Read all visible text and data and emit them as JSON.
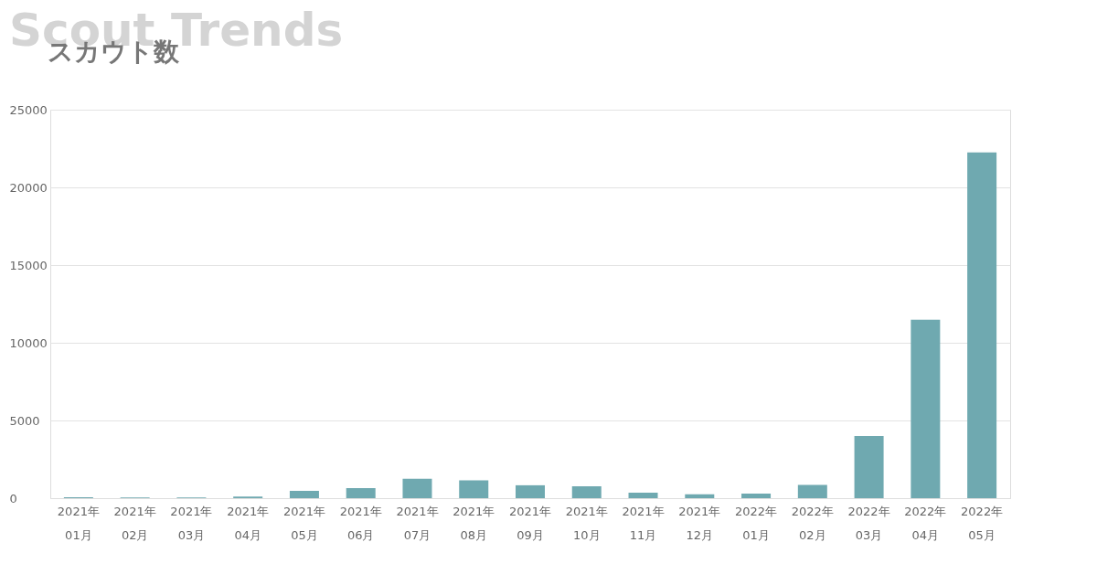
{
  "chart_data": {
    "type": "bar",
    "title": "スカウト数",
    "annotations": [
      "Scout Trends"
    ],
    "categories": [
      "2021年 01月",
      "2021年 02月",
      "2021年 03月",
      "2021年 04月",
      "2021年 05月",
      "2021年 06月",
      "2021年 07月",
      "2021年 08月",
      "2021年 09月",
      "2021年 10月",
      "2021年 11月",
      "2021年 12月",
      "2022年 01月",
      "2022年 02月",
      "2022年 03月",
      "2022年 04月",
      "2022年 05月"
    ],
    "series": [
      {
        "color": "#6fa9b0",
        "values": [
          60,
          50,
          50,
          100,
          470,
          650,
          1250,
          1150,
          830,
          770,
          350,
          250,
          300,
          850,
          4000,
          11480,
          22250
        ]
      }
    ],
    "ylim": [
      0,
      25000
    ],
    "yticks": [
      0,
      5000,
      10000,
      15000,
      20000,
      25000
    ],
    "grid": "y"
  }
}
